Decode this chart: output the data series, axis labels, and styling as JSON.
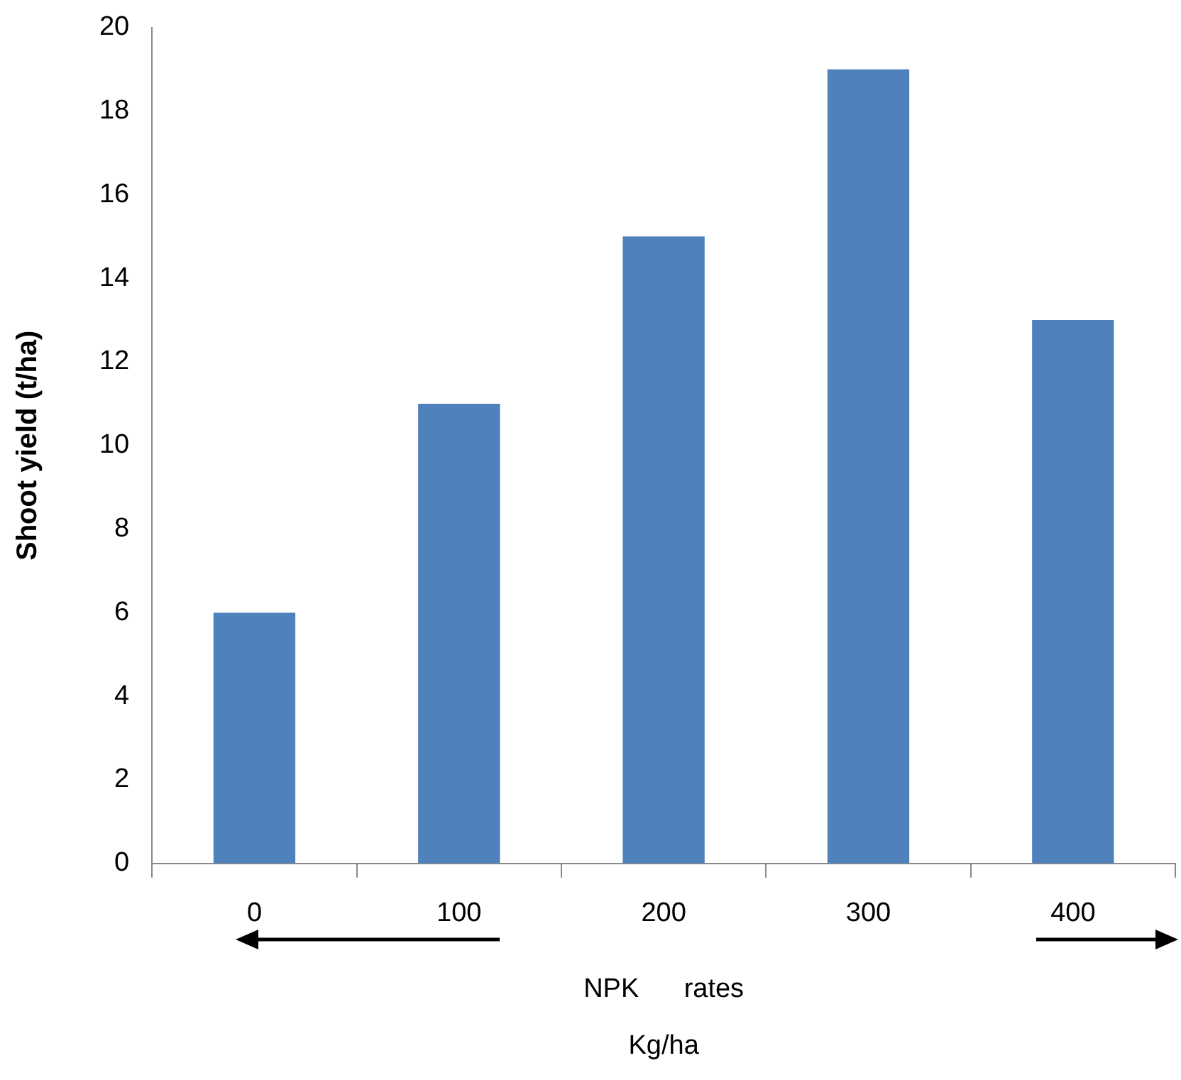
{
  "chart_data": {
    "type": "bar",
    "xlabel": "NPK      rates\nKg/ha",
    "ylabel": "Shoot yield (t/ha)",
    "categories": [
      "0",
      "100",
      "200",
      "300",
      "400"
    ],
    "values": [
      6,
      11,
      15,
      19,
      13
    ],
    "color": "#4f81bd",
    "ylim": [
      0,
      20
    ],
    "yticks": [
      0,
      2,
      4,
      6,
      8,
      10,
      12,
      14,
      16,
      18,
      20
    ],
    "grid": false,
    "legend": false
  }
}
